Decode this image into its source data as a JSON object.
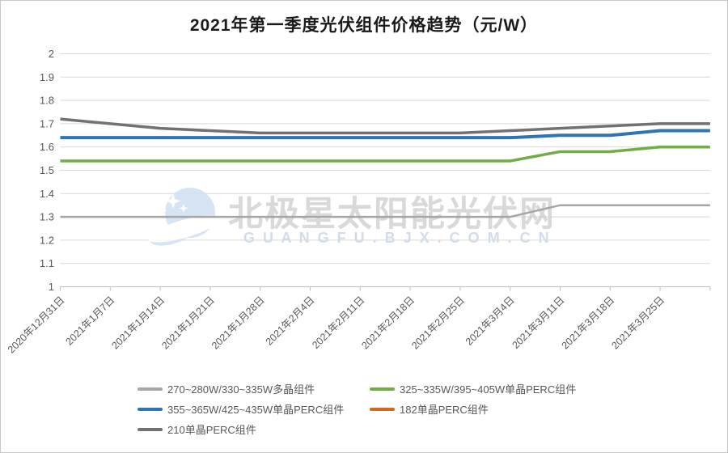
{
  "chart_data": {
    "type": "line",
    "title": "2021年第一季度光伏组件价格趋势（元/W）",
    "xlabel": "",
    "ylabel": "",
    "categories": [
      "2020年12月31日",
      "2021年1月7日",
      "2021年1月14日",
      "2021年1月21日",
      "2021年1月28日",
      "2021年2月4日",
      "2021年2月11日",
      "2021年2月18日",
      "2021年2月25日",
      "2021年3月4日",
      "2021年3月11日",
      "2021年3月18日",
      "2021年3月25日",
      ""
    ],
    "y_axis": {
      "min": 1,
      "max": 2,
      "step": 0.1,
      "ticks": [
        "2",
        "1.9",
        "1.8",
        "1.7",
        "1.6",
        "1.5",
        "1.4",
        "1.3",
        "1.2",
        "1.1",
        "1"
      ]
    },
    "grid": true,
    "legend_position": "bottom",
    "series": [
      {
        "name": "270~280W/330~335W多晶组件",
        "color": "#a6a6a6",
        "width": 2.5,
        "values": [
          1.3,
          1.3,
          1.3,
          1.3,
          1.3,
          1.3,
          1.3,
          1.3,
          1.3,
          1.3,
          1.35,
          1.35,
          1.35,
          1.35
        ]
      },
      {
        "name": "325~335W/395~405W单晶PERC组件",
        "color": "#70ad47",
        "width": 3.5,
        "values": [
          1.54,
          1.54,
          1.54,
          1.54,
          1.54,
          1.54,
          1.54,
          1.54,
          1.54,
          1.54,
          1.58,
          1.58,
          1.6,
          1.6
        ]
      },
      {
        "name": "355~365W/425~435W单晶PERC组件",
        "color": "#2e75b6",
        "width": 4,
        "values": [
          1.64,
          1.64,
          1.64,
          1.64,
          1.64,
          1.64,
          1.64,
          1.64,
          1.64,
          1.64,
          1.65,
          1.65,
          1.67,
          1.67
        ]
      },
      {
        "name": "182单晶PERC组件",
        "color": "#d2691e",
        "width": 3,
        "values": []
      },
      {
        "name": "210单晶PERC组件",
        "color": "#767171",
        "width": 3.5,
        "values": [
          1.72,
          1.7,
          1.68,
          1.67,
          1.66,
          1.66,
          1.66,
          1.66,
          1.66,
          1.67,
          1.68,
          1.69,
          1.7,
          1.7
        ]
      }
    ]
  },
  "watermark": {
    "line1": "北极星太阳能光伏网",
    "line2": "G U A N G F U . B J X . C O M . C N"
  },
  "colors": {
    "gridline": "#d9d9d9",
    "axis": "#bfbfbf",
    "axis_text": "#595959",
    "watermark_text": "#c7c7c7",
    "watermark_url": "#ccd7e6",
    "watermark_logo": "#cfe0f2"
  }
}
